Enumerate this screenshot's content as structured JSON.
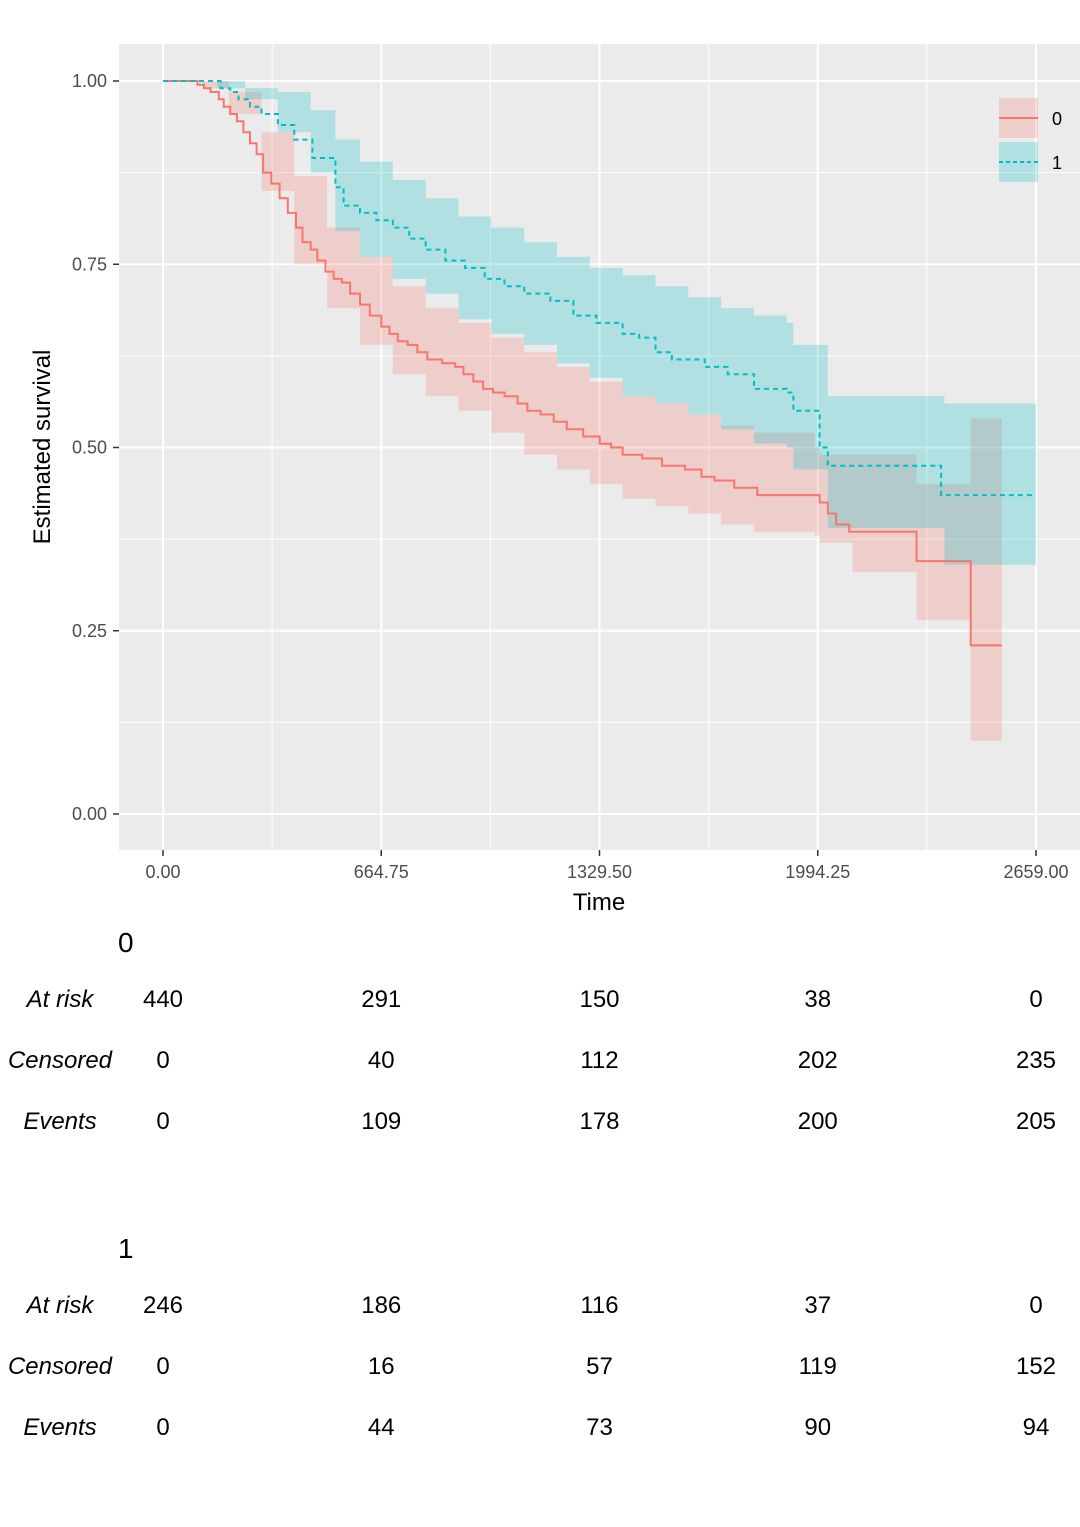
{
  "chart_data": {
    "type": "line",
    "subtype": "kaplan-meier",
    "xlabel": "Time",
    "ylabel": "Estimated survival",
    "xlim": [
      0,
      2659
    ],
    "ylim": [
      0,
      1
    ],
    "x_ticks": [
      "0.00",
      "664.75",
      "1329.50",
      "1994.25",
      "2659.00"
    ],
    "x_tick_values": [
      0,
      664.75,
      1329.5,
      1994.25,
      2659
    ],
    "y_ticks": [
      "0.00",
      "0.25",
      "0.50",
      "0.75",
      "1.00"
    ],
    "y_tick_values": [
      0,
      0.25,
      0.5,
      0.75,
      1.0
    ],
    "grid": true,
    "legend_position": "top-right",
    "series": [
      {
        "name": "0",
        "color": "#F8766D",
        "linetype": "solid",
        "curve": [
          [
            0,
            1.0
          ],
          [
            85,
            1.0
          ],
          [
            105,
            0.995
          ],
          [
            125,
            0.99
          ],
          [
            145,
            0.985
          ],
          [
            170,
            0.975
          ],
          [
            185,
            0.965
          ],
          [
            205,
            0.955
          ],
          [
            225,
            0.945
          ],
          [
            245,
            0.93
          ],
          [
            265,
            0.915
          ],
          [
            285,
            0.9
          ],
          [
            305,
            0.875
          ],
          [
            330,
            0.86
          ],
          [
            355,
            0.84
          ],
          [
            380,
            0.82
          ],
          [
            405,
            0.8
          ],
          [
            425,
            0.78
          ],
          [
            450,
            0.77
          ],
          [
            470,
            0.755
          ],
          [
            495,
            0.74
          ],
          [
            520,
            0.73
          ],
          [
            545,
            0.725
          ],
          [
            570,
            0.71
          ],
          [
            600,
            0.695
          ],
          [
            630,
            0.68
          ],
          [
            665,
            0.665
          ],
          [
            690,
            0.655
          ],
          [
            715,
            0.645
          ],
          [
            745,
            0.64
          ],
          [
            775,
            0.63
          ],
          [
            805,
            0.62
          ],
          [
            850,
            0.615
          ],
          [
            890,
            0.61
          ],
          [
            915,
            0.6
          ],
          [
            945,
            0.59
          ],
          [
            975,
            0.58
          ],
          [
            1005,
            0.575
          ],
          [
            1040,
            0.57
          ],
          [
            1080,
            0.56
          ],
          [
            1110,
            0.55
          ],
          [
            1150,
            0.545
          ],
          [
            1190,
            0.535
          ],
          [
            1230,
            0.525
          ],
          [
            1280,
            0.515
          ],
          [
            1330,
            0.505
          ],
          [
            1365,
            0.5
          ],
          [
            1400,
            0.49
          ],
          [
            1460,
            0.485
          ],
          [
            1520,
            0.475
          ],
          [
            1590,
            0.47
          ],
          [
            1640,
            0.46
          ],
          [
            1680,
            0.455
          ],
          [
            1740,
            0.445
          ],
          [
            1810,
            0.435
          ],
          [
            1985,
            0.435
          ],
          [
            2000,
            0.425
          ],
          [
            2025,
            0.41
          ],
          [
            2050,
            0.395
          ],
          [
            2090,
            0.385
          ],
          [
            2290,
            0.385
          ],
          [
            2295,
            0.345
          ],
          [
            2455,
            0.345
          ],
          [
            2460,
            0.23
          ],
          [
            2555,
            0.23
          ]
        ],
        "ci_upper": [
          [
            0,
            1.0
          ],
          [
            120,
            1.0
          ],
          [
            200,
            0.985
          ],
          [
            300,
            0.93
          ],
          [
            400,
            0.87
          ],
          [
            500,
            0.8
          ],
          [
            600,
            0.76
          ],
          [
            700,
            0.72
          ],
          [
            800,
            0.69
          ],
          [
            900,
            0.67
          ],
          [
            1000,
            0.65
          ],
          [
            1100,
            0.63
          ],
          [
            1200,
            0.61
          ],
          [
            1300,
            0.59
          ],
          [
            1400,
            0.57
          ],
          [
            1500,
            0.56
          ],
          [
            1600,
            0.545
          ],
          [
            1700,
            0.53
          ],
          [
            1800,
            0.52
          ],
          [
            1985,
            0.5
          ],
          [
            2000,
            0.49
          ],
          [
            2100,
            0.49
          ],
          [
            2295,
            0.45
          ],
          [
            2455,
            0.45
          ],
          [
            2460,
            0.54
          ],
          [
            2555,
            0.54
          ]
        ],
        "ci_lower": [
          [
            0,
            1.0
          ],
          [
            120,
            0.99
          ],
          [
            200,
            0.955
          ],
          [
            300,
            0.85
          ],
          [
            400,
            0.75
          ],
          [
            500,
            0.69
          ],
          [
            600,
            0.64
          ],
          [
            700,
            0.6
          ],
          [
            800,
            0.57
          ],
          [
            900,
            0.55
          ],
          [
            1000,
            0.52
          ],
          [
            1100,
            0.49
          ],
          [
            1200,
            0.47
          ],
          [
            1300,
            0.45
          ],
          [
            1400,
            0.43
          ],
          [
            1500,
            0.42
          ],
          [
            1600,
            0.41
          ],
          [
            1700,
            0.395
          ],
          [
            1800,
            0.385
          ],
          [
            1985,
            0.38
          ],
          [
            2000,
            0.37
          ],
          [
            2100,
            0.33
          ],
          [
            2295,
            0.265
          ],
          [
            2455,
            0.265
          ],
          [
            2460,
            0.1
          ],
          [
            2555,
            0.1
          ]
        ]
      },
      {
        "name": "1",
        "color": "#00BFC4",
        "linetype": "dashed",
        "curve": [
          [
            0,
            1.0
          ],
          [
            165,
            1.0
          ],
          [
            175,
            0.99
          ],
          [
            205,
            0.985
          ],
          [
            230,
            0.975
          ],
          [
            265,
            0.965
          ],
          [
            300,
            0.955
          ],
          [
            350,
            0.94
          ],
          [
            400,
            0.92
          ],
          [
            455,
            0.895
          ],
          [
            525,
            0.855
          ],
          [
            550,
            0.83
          ],
          [
            600,
            0.82
          ],
          [
            650,
            0.81
          ],
          [
            700,
            0.8
          ],
          [
            750,
            0.785
          ],
          [
            800,
            0.77
          ],
          [
            860,
            0.755
          ],
          [
            920,
            0.745
          ],
          [
            980,
            0.73
          ],
          [
            1040,
            0.72
          ],
          [
            1100,
            0.71
          ],
          [
            1180,
            0.7
          ],
          [
            1250,
            0.68
          ],
          [
            1320,
            0.67
          ],
          [
            1400,
            0.655
          ],
          [
            1450,
            0.65
          ],
          [
            1500,
            0.63
          ],
          [
            1550,
            0.62
          ],
          [
            1650,
            0.61
          ],
          [
            1720,
            0.6
          ],
          [
            1800,
            0.58
          ],
          [
            1900,
            0.575
          ],
          [
            1920,
            0.55
          ],
          [
            2000,
            0.5
          ],
          [
            2025,
            0.475
          ],
          [
            2350,
            0.475
          ],
          [
            2370,
            0.435
          ],
          [
            2659,
            0.435
          ]
        ],
        "ci_upper": [
          [
            0,
            1.0
          ],
          [
            165,
            1.0
          ],
          [
            250,
            0.99
          ],
          [
            350,
            0.985
          ],
          [
            450,
            0.96
          ],
          [
            525,
            0.92
          ],
          [
            600,
            0.89
          ],
          [
            700,
            0.865
          ],
          [
            800,
            0.84
          ],
          [
            900,
            0.815
          ],
          [
            1000,
            0.8
          ],
          [
            1100,
            0.78
          ],
          [
            1200,
            0.76
          ],
          [
            1300,
            0.745
          ],
          [
            1400,
            0.735
          ],
          [
            1500,
            0.72
          ],
          [
            1600,
            0.705
          ],
          [
            1700,
            0.69
          ],
          [
            1800,
            0.68
          ],
          [
            1900,
            0.67
          ],
          [
            1920,
            0.64
          ],
          [
            2025,
            0.57
          ],
          [
            2370,
            0.57
          ],
          [
            2380,
            0.56
          ],
          [
            2659,
            0.56
          ]
        ],
        "ci_lower": [
          [
            0,
            1.0
          ],
          [
            165,
            0.99
          ],
          [
            250,
            0.975
          ],
          [
            350,
            0.93
          ],
          [
            450,
            0.875
          ],
          [
            525,
            0.795
          ],
          [
            600,
            0.76
          ],
          [
            700,
            0.73
          ],
          [
            800,
            0.71
          ],
          [
            900,
            0.675
          ],
          [
            1000,
            0.655
          ],
          [
            1100,
            0.64
          ],
          [
            1200,
            0.615
          ],
          [
            1300,
            0.595
          ],
          [
            1400,
            0.57
          ],
          [
            1500,
            0.56
          ],
          [
            1600,
            0.545
          ],
          [
            1700,
            0.525
          ],
          [
            1800,
            0.505
          ],
          [
            1900,
            0.5
          ],
          [
            1920,
            0.47
          ],
          [
            2025,
            0.39
          ],
          [
            2370,
            0.39
          ],
          [
            2380,
            0.34
          ],
          [
            2659,
            0.34
          ]
        ]
      }
    ],
    "risk_table": {
      "columns": [
        "0.00",
        "664.75",
        "1329.50",
        "1994.25",
        "2659.00"
      ],
      "row_labels": [
        "At risk",
        "Censored",
        "Events"
      ],
      "groups": [
        {
          "name": "0",
          "at_risk": [
            "440",
            "291",
            "150",
            "38",
            "0"
          ],
          "censored": [
            "0",
            "40",
            "112",
            "202",
            "235"
          ],
          "events": [
            "0",
            "109",
            "178",
            "200",
            "205"
          ]
        },
        {
          "name": "1",
          "at_risk": [
            "246",
            "186",
            "116",
            "37",
            "0"
          ],
          "censored": [
            "0",
            "16",
            "57",
            "119",
            "152"
          ],
          "events": [
            "0",
            "44",
            "73",
            "90",
            "94"
          ]
        }
      ]
    }
  }
}
